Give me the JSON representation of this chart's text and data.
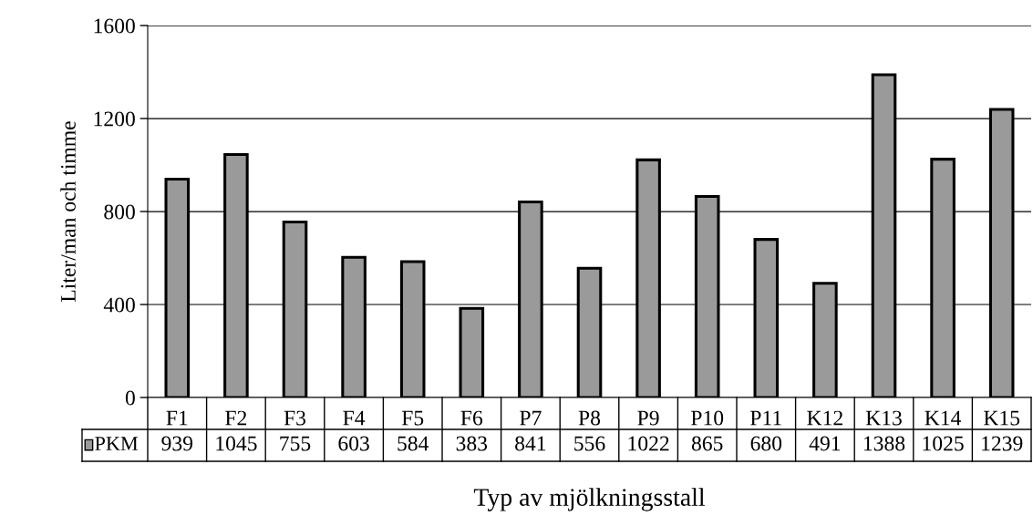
{
  "chart_data": {
    "type": "bar",
    "xlabel": "Typ av mjölkningsstall",
    "ylabel": "Liter/man och timme",
    "categories": [
      "F1",
      "F2",
      "F3",
      "F4",
      "F5",
      "F6",
      "P7",
      "P8",
      "P9",
      "P10",
      "P11",
      "K12",
      "K13",
      "K14",
      "K15"
    ],
    "series": [
      {
        "name": "PKM",
        "color": "#9a9a9a",
        "values": [
          939,
          1045,
          755,
          603,
          584,
          383,
          841,
          556,
          1022,
          865,
          680,
          491,
          1388,
          1025,
          1239
        ]
      }
    ],
    "ylim": [
      0,
      1600
    ],
    "yticks": [
      0,
      400,
      800,
      1200,
      1600
    ],
    "grid": "y",
    "data_labels": true
  }
}
